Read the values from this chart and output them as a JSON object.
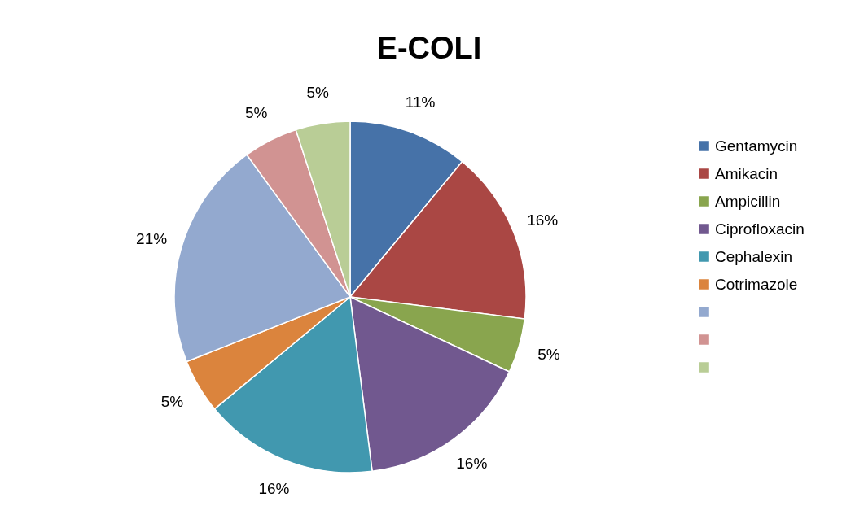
{
  "chart_data": {
    "type": "pie",
    "title": "E-COLI",
    "categories": [
      "Gentamycin",
      "Amikacin",
      "Ampicillin",
      "Ciprofloxacin",
      "Cephalexin",
      "Cotrimazole",
      null,
      null,
      null
    ],
    "values": [
      11,
      16,
      5,
      16,
      16,
      5,
      21,
      5,
      5
    ],
    "value_labels": [
      "11%",
      "16%",
      "5%",
      "16%",
      "16%",
      "5%",
      "21%",
      "5%",
      "5%"
    ],
    "colors": [
      "#4672a8",
      "#aa4744",
      "#89a54e",
      "#71588f",
      "#4198af",
      "#db843d",
      "#93a9cf",
      "#d19392",
      "#b9cd96"
    ],
    "legend": "right"
  }
}
